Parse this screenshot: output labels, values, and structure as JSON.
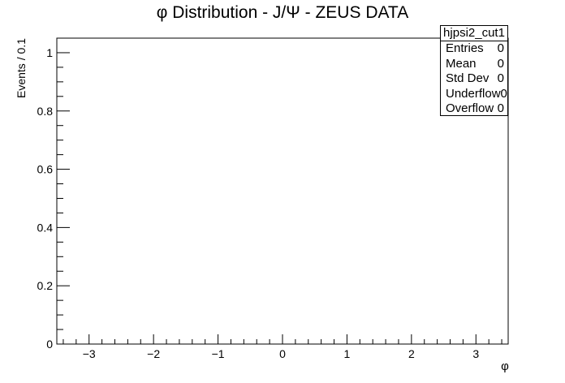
{
  "chart_data": {
    "type": "histogram",
    "title": "φ Distribution - J/Ψ - ZEUS DATA",
    "xlabel": "φ",
    "ylabel": "Events / 0.1",
    "xlim": [
      -3.5,
      3.5
    ],
    "ylim": [
      0,
      1.05
    ],
    "x_ticks": [
      -3,
      -2,
      -1,
      0,
      1,
      2,
      3
    ],
    "x_tick_labels": [
      "−3",
      "−2",
      "−1",
      "0",
      "1",
      "2",
      "3"
    ],
    "y_ticks": [
      0,
      0.2,
      0.4,
      0.6,
      0.8,
      1
    ],
    "y_tick_labels": [
      "0",
      "0.2",
      "0.4",
      "0.6",
      "0.8",
      "1"
    ],
    "bin_width": 0.1,
    "values": [],
    "grid": false,
    "stats_box": {
      "name": "hjpsi2_cut1",
      "rows": [
        {
          "label": "Entries",
          "value": "0"
        },
        {
          "label": "Mean",
          "value": "0"
        },
        {
          "label": "Std Dev",
          "value": "0"
        },
        {
          "label": "Underflow",
          "value": "0"
        },
        {
          "label": "Overflow",
          "value": "0"
        }
      ]
    }
  }
}
